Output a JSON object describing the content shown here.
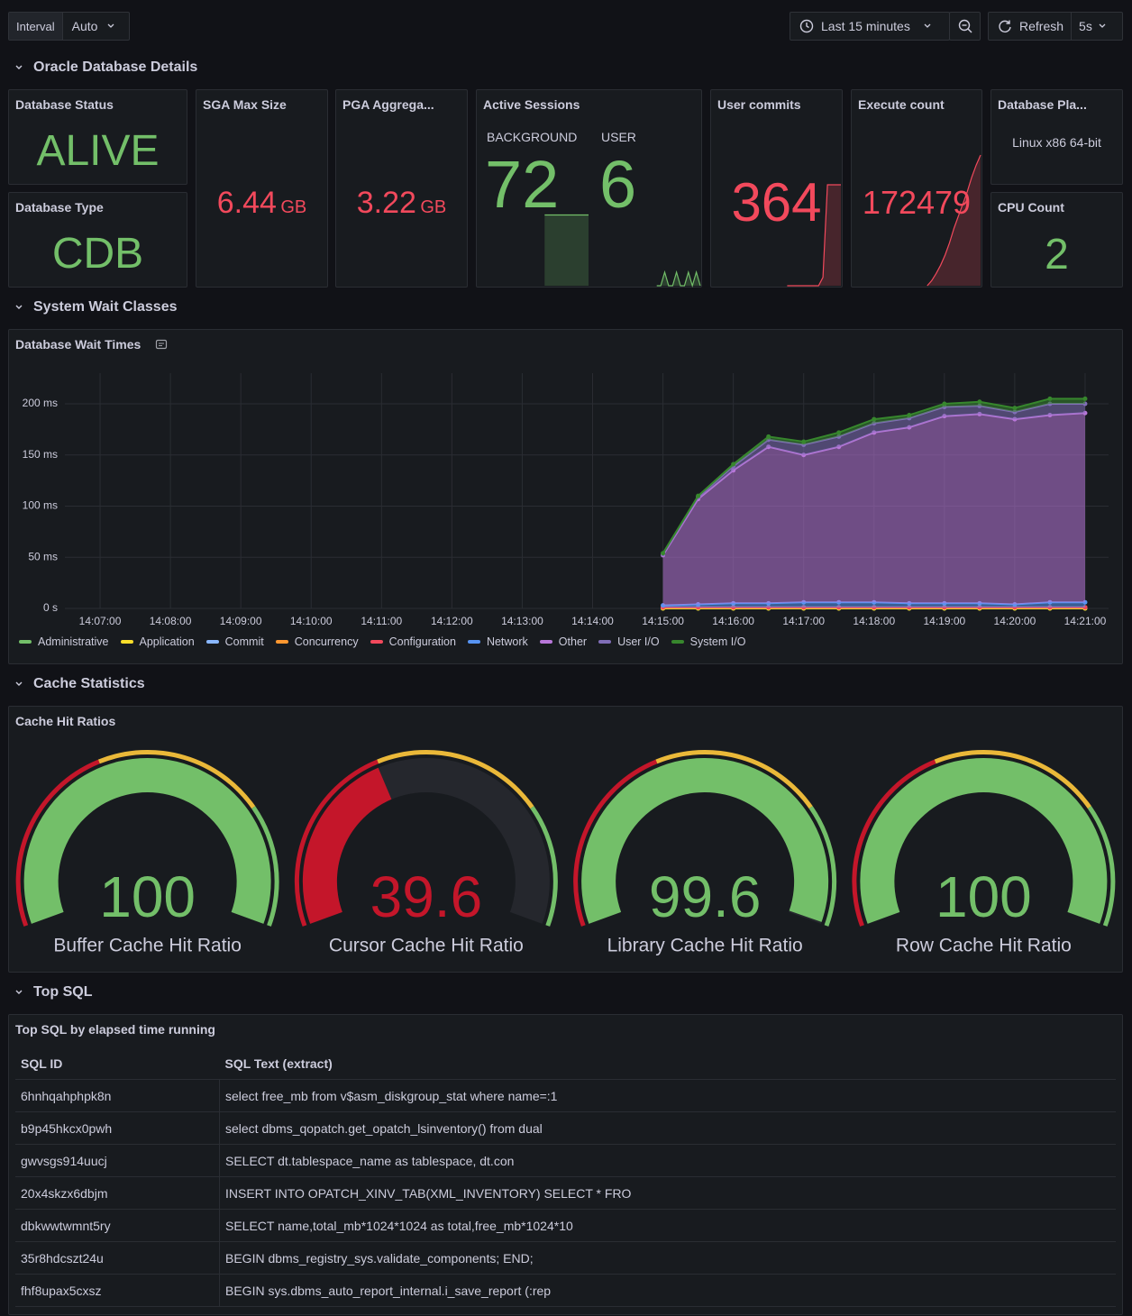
{
  "toolbar": {
    "interval_label": "Interval",
    "interval_value": "Auto",
    "time_range": "Last 15 minutes",
    "refresh_label": "Refresh",
    "refresh_interval": "5s"
  },
  "rows": [
    "Oracle Database Details",
    "System Wait Classes",
    "Cache Statistics",
    "Top SQL"
  ],
  "stats": {
    "database_status": {
      "title": "Database Status",
      "value": "ALIVE",
      "color": "#73bf69"
    },
    "database_type": {
      "title": "Database Type",
      "value": "CDB",
      "color": "#73bf69"
    },
    "sga_max_size": {
      "title": "SGA Max Size",
      "value": 6.44,
      "unit": "GB",
      "color": "#f2495c"
    },
    "pga_aggregate": {
      "title": "PGA Aggrega...",
      "value": 3.22,
      "unit": "GB",
      "color": "#f2495c"
    },
    "active_sessions": {
      "title": "Active Sessions",
      "color": "#73bf69",
      "background_label": "BACKGROUND",
      "background": 72,
      "background_sparkline": [
        null,
        null,
        null,
        null,
        null,
        null,
        null,
        null,
        null,
        null,
        null,
        null,
        null,
        null,
        null,
        null,
        null,
        72,
        72,
        72,
        72,
        72,
        72,
        72,
        72,
        72,
        72,
        72,
        72
      ],
      "user_label": "USER",
      "user": 6,
      "user_sparkline": [
        null,
        null,
        null,
        null,
        null,
        null,
        null,
        null,
        null,
        null,
        null,
        null,
        null,
        null,
        null,
        null,
        null,
        6,
        6,
        7,
        6,
        6,
        7,
        6,
        6,
        7,
        6,
        7,
        6
      ]
    },
    "user_commits": {
      "title": "User commits",
      "value": 364,
      "color": "#f2495c",
      "sparkline": [
        null,
        null,
        null,
        null,
        null,
        null,
        null,
        null,
        null,
        null,
        null,
        null,
        null,
        null,
        null,
        null,
        null,
        352,
        352,
        352,
        352,
        352,
        352,
        352,
        352,
        353,
        364,
        364,
        364,
        364
      ]
    },
    "execute_count": {
      "title": "Execute count",
      "value": 172479,
      "color": "#f2495c",
      "sparkline": [
        null,
        null,
        null,
        null,
        null,
        null,
        null,
        null,
        null,
        null,
        null,
        null,
        null,
        null,
        null,
        null,
        null,
        171200,
        171250,
        171320,
        171400,
        171500,
        171620,
        171760,
        171880,
        172000,
        172120,
        172260,
        172380,
        172479
      ]
    },
    "database_platform": {
      "title": "Database Pla...",
      "value": "Linux x86 64-bit"
    },
    "cpu_count": {
      "title": "CPU Count",
      "value": 2,
      "color": "#73bf69"
    }
  },
  "chart_data": {
    "type": "area",
    "stacked": true,
    "title": "Database Wait Times",
    "x": [
      "14:15:00",
      "14:15:30",
      "14:16:00",
      "14:16:30",
      "14:17:00",
      "14:17:30",
      "14:18:00",
      "14:18:30",
      "14:19:00",
      "14:19:30",
      "14:20:00",
      "14:20:30",
      "14:21:00"
    ],
    "xlim": [
      "14:06:30",
      "14:21:20"
    ],
    "xticks": [
      "14:07:00",
      "14:08:00",
      "14:09:00",
      "14:10:00",
      "14:11:00",
      "14:12:00",
      "14:13:00",
      "14:14:00",
      "14:15:00",
      "14:16:00",
      "14:17:00",
      "14:18:00",
      "14:19:00",
      "14:20:00",
      "14:21:00"
    ],
    "ylim": [
      0,
      230
    ],
    "yticks": [
      {
        "value": 0,
        "label": "0 s"
      },
      {
        "value": 50,
        "label": "50 ms"
      },
      {
        "value": 100,
        "label": "100 ms"
      },
      {
        "value": 150,
        "label": "150 ms"
      },
      {
        "value": 200,
        "label": "200 ms"
      }
    ],
    "grid": true,
    "series": [
      {
        "name": "Administrative",
        "color": "#73bf69",
        "values": [
          0,
          0,
          0,
          0,
          0,
          0,
          0,
          0,
          0,
          0,
          0,
          0,
          0
        ]
      },
      {
        "name": "Application",
        "color": "#fade2a",
        "values": [
          0,
          0,
          0,
          0,
          0,
          0,
          0,
          0,
          0,
          0,
          0,
          0,
          0
        ]
      },
      {
        "name": "Commit",
        "color": "#8ab8ff",
        "values": [
          1,
          1,
          1,
          1,
          1,
          1,
          1,
          1,
          1,
          1,
          1,
          1,
          1
        ]
      },
      {
        "name": "Concurrency",
        "color": "#ff9830",
        "values": [
          0,
          0,
          0,
          0,
          0,
          0,
          0,
          0,
          0,
          0,
          0,
          0,
          0
        ]
      },
      {
        "name": "Configuration",
        "color": "#f2495c",
        "values": [
          0,
          0,
          0,
          0,
          0,
          0,
          0,
          0,
          0,
          0,
          0,
          0,
          0
        ]
      },
      {
        "name": "Network",
        "color": "#5794f2",
        "values": [
          2,
          3,
          4,
          4,
          5,
          5,
          5,
          4,
          4,
          4,
          3,
          5,
          5
        ]
      },
      {
        "name": "Other",
        "color": "#b877d9",
        "values": [
          49,
          103,
          130,
          153,
          144,
          152,
          166,
          172,
          183,
          185,
          181,
          183,
          185
        ]
      },
      {
        "name": "User I/O",
        "color": "#806eb7",
        "values": [
          1,
          2,
          4,
          7,
          10,
          10,
          9,
          9,
          9,
          8,
          7,
          11,
          9
        ]
      },
      {
        "name": "System I/O",
        "color": "#37872d",
        "values": [
          1,
          1,
          2,
          3,
          3,
          4,
          4,
          3,
          3,
          4,
          4,
          5,
          5
        ]
      }
    ]
  },
  "gauges": {
    "title": "Cache Hit Ratios",
    "min": 0,
    "max": 100,
    "base_color": "#c4162a",
    "thresholds": [
      {
        "value": 40,
        "color": "#eab839"
      },
      {
        "value": 75,
        "color": "#73bf69"
      }
    ],
    "items": [
      {
        "name": "Buffer Cache Hit Ratio",
        "value": 100
      },
      {
        "name": "Cursor Cache Hit Ratio",
        "value": 39.6
      },
      {
        "name": "Library Cache Hit Ratio",
        "value": 99.6
      },
      {
        "name": "Row Cache Hit Ratio",
        "value": 100
      }
    ]
  },
  "top_sql": {
    "title": "Top SQL by elapsed time running",
    "columns": [
      "SQL ID",
      "SQL Text (extract)"
    ],
    "rows": [
      [
        "6hnhqahphpk8n",
        "select free_mb from v$asm_diskgroup_stat where name=:1"
      ],
      [
        "b9p45hkcx0pwh",
        "select dbms_qopatch.get_opatch_lsinventory() from dual"
      ],
      [
        "gwvsgs914uucj",
        "SELECT dt.tablespace_name as tablespace, dt.con"
      ],
      [
        "20x4skzx6dbjm",
        "INSERT INTO OPATCH_XINV_TAB(XML_INVENTORY) SELECT * FRO"
      ],
      [
        "dbkwwtwmnt5ry",
        "SELECT name,total_mb*1024*1024 as total,free_mb*1024*10"
      ],
      [
        "35r8hdcszt24u",
        "BEGIN dbms_registry_sys.validate_components; END;"
      ],
      [
        "fhf8upax5cxsz",
        "BEGIN sys.dbms_auto_report_internal.i_save_report (:rep"
      ]
    ]
  }
}
